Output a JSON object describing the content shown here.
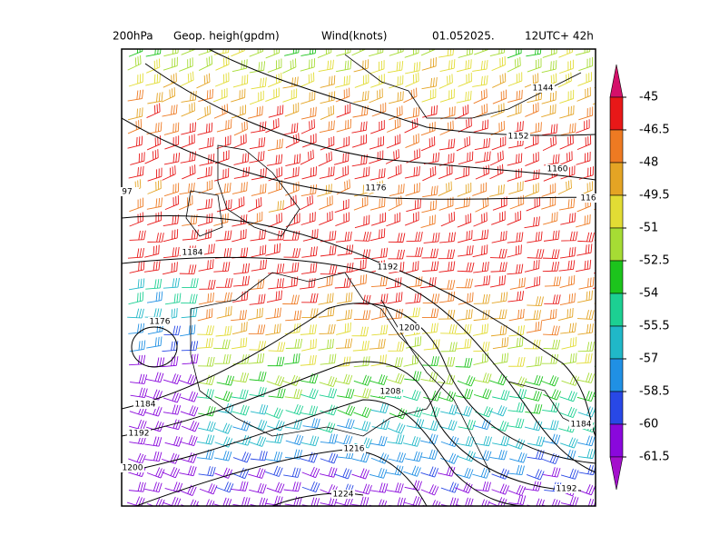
{
  "header": {
    "level": "200hPa",
    "field": "Geop. heigh(gpdm)",
    "wind": "Wind(knots)",
    "date": "01.052025.",
    "time": "12UTC+ 42h"
  },
  "contour_labels": [
    "1144",
    "1152",
    "1160",
    "1176",
    "116",
    "97",
    "1184",
    "1192",
    "1176",
    "1200",
    "1184",
    "1208",
    "1184",
    "1192",
    "1216",
    "1200",
    "1192",
    "1224"
  ],
  "colorbar": {
    "ticks": [
      -45,
      -46.5,
      -48,
      -49.5,
      -51,
      -52.5,
      -54,
      -55.5,
      -57,
      -58.5,
      -60,
      -61.5
    ],
    "colors": [
      "#d4106a",
      "#e81818",
      "#ee7a22",
      "#e4a424",
      "#e2dc34",
      "#a6dc34",
      "#1cc41c",
      "#1cd092",
      "#20b8c8",
      "#2090e4",
      "#2848e6",
      "#8a08dc",
      "#a410cc"
    ]
  }
}
